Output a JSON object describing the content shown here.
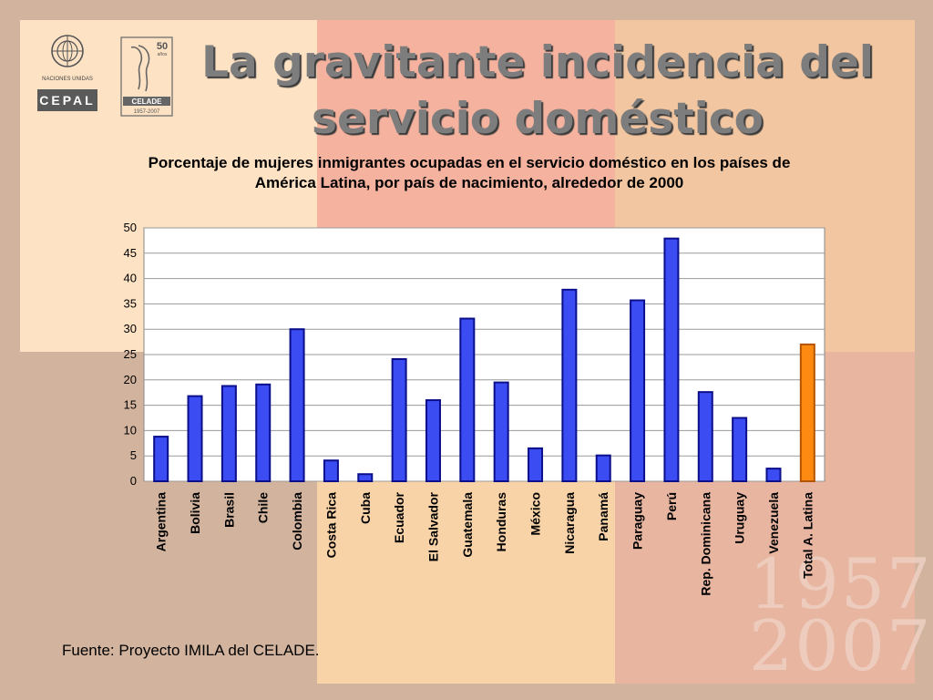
{
  "slide": {
    "title_line1": "La gravitante incidencia del",
    "title_line2": "servicio doméstico",
    "source": "Fuente: Proyecto IMILA del CELADE.",
    "watermark_line1": "1957",
    "watermark_line2": "2007"
  },
  "logos": {
    "cepal_top": "NACIONES UNIDAS",
    "cepal_name": "CEPAL",
    "celade_years_num": "50",
    "celade_years_word": "años",
    "celade_name": "CELADE",
    "celade_dates": "1957-2007"
  },
  "chart_data": {
    "type": "bar",
    "title": "Porcentaje de mujeres inmigrantes ocupadas en el servicio doméstico en los países de América Latina, por país de nacimiento, alrededor de 2000",
    "title_line1": "Porcentaje de mujeres inmigrantes ocupadas en el servicio doméstico en los países de",
    "title_line2": "América Latina, por país de nacimiento, alrededor de 2000",
    "categories": [
      "Argentina",
      "Bolivia",
      "Brasil",
      "Chile",
      "Colombia",
      "Costa Rica",
      "Cuba",
      "Ecuador",
      "El Salvador",
      "Guatemala",
      "Honduras",
      "México",
      "Nicaragua",
      "Panamá",
      "Paraguay",
      "Perú",
      "Rep. Dominicana",
      "Uruguay",
      "Venezuela",
      "Total A. Latina"
    ],
    "values": [
      8.8,
      16.8,
      18.8,
      19.1,
      30.0,
      4.1,
      1.4,
      24.1,
      16.0,
      32.1,
      19.5,
      6.5,
      37.8,
      5.1,
      35.7,
      47.9,
      17.6,
      12.5,
      2.5,
      27.0
    ],
    "ylim": [
      0,
      50
    ],
    "yticks": [
      0,
      5,
      10,
      15,
      20,
      25,
      30,
      35,
      40,
      45,
      50
    ],
    "grid": true,
    "legend": "none",
    "colors": {
      "bar": "#3b4cf2",
      "bar_edge": "#0b0f8a",
      "highlight": "#ff8a12",
      "highlight_edge": "#b35400",
      "plot_bg": "#ffffff",
      "grid": "#9a9a9a"
    },
    "highlight_category": "Total A. Latina"
  }
}
